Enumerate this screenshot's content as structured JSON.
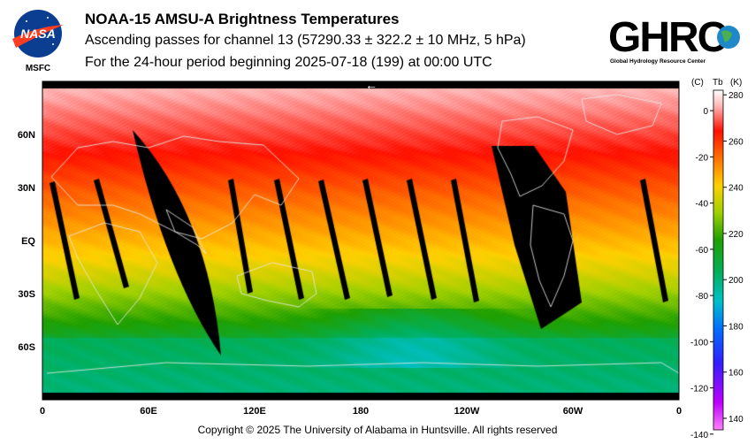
{
  "header": {
    "title": "NOAA-15 AMSU-A Brightness Temperatures",
    "subtitle1": "Ascending passes for channel 13 (57290.33 ± 322.2 ± 10 MHz, 5 hPa)",
    "subtitle2": "For the 24-hour period beginning 2025-07-18 (199) at 00:00 UTC"
  },
  "logos": {
    "nasa_text": "NASA",
    "msfc_text": "MSFC",
    "ghrc_text": "GHRC",
    "ghrc_caption": "Global Hydrology Resource Center"
  },
  "map": {
    "x_ticks": [
      "0",
      "60E",
      "120E",
      "180",
      "120W",
      "60W",
      "0"
    ],
    "y_ticks": [
      "60N",
      "30N",
      "EQ",
      "30S",
      "60S"
    ],
    "arrow": "←"
  },
  "colorbar": {
    "header_c": "(C)",
    "header_tb": "Tb",
    "header_k": "(K)",
    "kelvin_ticks": [
      "280",
      "260",
      "240",
      "220",
      "200",
      "180",
      "160",
      "140"
    ],
    "celsius_ticks": [
      "0",
      "-20",
      "-40",
      "-60",
      "-80",
      "-100",
      "-120",
      "-140"
    ],
    "colors": [
      "#ff00ff",
      "#4b00ff",
      "#0060ff",
      "#00d0d0",
      "#00b050",
      "#2aa000",
      "#c0e000",
      "#ffd000",
      "#ff6000",
      "#ff0000",
      "#ffc0c0",
      "#ffffff"
    ]
  },
  "footer": {
    "copyright": "Copyright © 2025 The University of Alabama in Huntsville.  All rights reserved"
  }
}
